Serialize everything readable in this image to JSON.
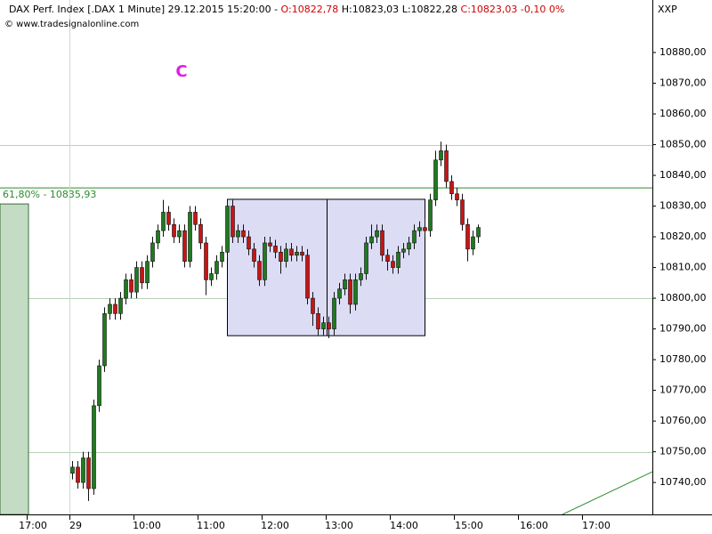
{
  "chart_data": {
    "type": "candlestick",
    "title": "DAX Perf. Index [.DAX  1 Minute] 29.12.2015 15:20:00 -",
    "quote_open": "O:10822,78",
    "quote_high": "H:10823,03",
    "quote_low": "L:10822,28",
    "quote_close": "C:10823,03 -0,10 0%",
    "source": "© www.tradesignalonline.com",
    "symbol": "XXP",
    "annotation": "C",
    "fib_level": {
      "value": 10835.93,
      "label": "61,80% - 10835,93"
    },
    "range_box": {
      "top": 10832.2,
      "bottom": 10787.8
    },
    "prior_box_top": 10830.7,
    "trendline": [
      10729.6,
      10743.5
    ],
    "up_color": "#1f7a1f",
    "down_color": "#c81414",
    "fib_color": "#2e8b2e",
    "ylim": [
      10729.6,
      10897.1
    ],
    "yticks": [
      {
        "value": 10740,
        "label": "10740,00"
      },
      {
        "value": 10750,
        "label": "10750,00"
      },
      {
        "value": 10760,
        "label": "10760,00"
      },
      {
        "value": 10770,
        "label": "10770,00"
      },
      {
        "value": 10780,
        "label": "10780,00"
      },
      {
        "value": 10790,
        "label": "10790,00"
      },
      {
        "value": 10800,
        "label": "10800,00"
      },
      {
        "value": 10810,
        "label": "10810,00"
      },
      {
        "value": 10820,
        "label": "10820,00"
      },
      {
        "value": 10830,
        "label": "10830,00"
      },
      {
        "value": 10840,
        "label": "10840,00"
      },
      {
        "value": 10850,
        "label": "10850,00"
      },
      {
        "value": 10860,
        "label": "10860,00"
      },
      {
        "value": 10870,
        "label": "10870,00"
      },
      {
        "value": 10880,
        "label": "10880,00"
      }
    ],
    "grid_levels": [
      10750,
      10800,
      10850
    ],
    "x_labels": [
      "17:00",
      "29",
      "10:00",
      "11:00",
      "12:00",
      "13:00",
      "14:00",
      "15:00",
      "16:00",
      "17:00"
    ],
    "series": {
      "open": [
        10743,
        10745,
        10740,
        10748,
        10738,
        10765,
        10778,
        10795,
        10798,
        10795,
        10800,
        10806,
        10802,
        10810,
        10805,
        10812,
        10818,
        10822,
        10828,
        10824,
        10820,
        10822,
        10812,
        10828,
        10824,
        10818,
        10806,
        10808,
        10812,
        10815,
        10830,
        10820,
        10822,
        10820,
        10816,
        10812,
        10806,
        10818,
        10817,
        10815,
        10812,
        10816,
        10814,
        10815,
        10814,
        10800,
        10795,
        10790,
        10792,
        10790,
        10800,
        10803,
        10806,
        10798,
        10806,
        10808,
        10818,
        10820,
        10822,
        10814,
        10812,
        10810,
        10815,
        10816,
        10818,
        10822,
        10823,
        10822,
        10832,
        10845,
        10848,
        10838,
        10834,
        10832,
        10824,
        10816,
        10820
      ],
      "high": [
        10747,
        10747,
        10750,
        10750,
        10767,
        10780,
        10797,
        10800,
        10800,
        10802,
        10808,
        10808,
        10812,
        10812,
        10814,
        10820,
        10824,
        10832,
        10830,
        10826,
        10824,
        10824,
        10830,
        10830,
        10826,
        10820,
        10810,
        10814,
        10817,
        10832,
        10832,
        10824,
        10824,
        10822,
        10818,
        10814,
        10820,
        10820,
        10819,
        10817,
        10818,
        10818,
        10817,
        10817,
        10816,
        10802,
        10797,
        10794,
        10794,
        10802,
        10805,
        10808,
        10808,
        10808,
        10810,
        10820,
        10824,
        10824,
        10824,
        10816,
        10814,
        10817,
        10818,
        10820,
        10824,
        10825,
        10826,
        10834,
        10848,
        10851,
        10850,
        10840,
        10836,
        10834,
        10826,
        10822,
        10824
      ],
      "low": [
        10741,
        10738,
        10738,
        10734,
        10736,
        10763,
        10776,
        10793,
        10793,
        10793,
        10798,
        10800,
        10800,
        10803,
        10803,
        10810,
        10816,
        10820,
        10822,
        10818,
        10818,
        10810,
        10810,
        10822,
        10816,
        10801,
        10804,
        10806,
        10810,
        10813,
        10818,
        10818,
        10818,
        10814,
        10810,
        10804,
        10804,
        10815,
        10813,
        10808,
        10810,
        10812,
        10812,
        10812,
        10798,
        10791,
        10788,
        10788,
        10787,
        10788,
        10798,
        10801,
        10795,
        10796,
        10804,
        10806,
        10816,
        10818,
        10812,
        10809,
        10808,
        10808,
        10813,
        10814,
        10816,
        10820,
        10820,
        10820,
        10830,
        10843,
        10836,
        10832,
        10830,
        10822,
        10812,
        10814,
        10818
      ],
      "close": [
        10745,
        10740,
        10748,
        10738,
        10765,
        10778,
        10795,
        10798,
        10795,
        10800,
        10806,
        10802,
        10810,
        10805,
        10812,
        10818,
        10822,
        10828,
        10824,
        10820,
        10822,
        10812,
        10828,
        10824,
        10818,
        10806,
        10808,
        10812,
        10815,
        10830,
        10820,
        10822,
        10820,
        10816,
        10812,
        10806,
        10818,
        10817,
        10815,
        10812,
        10816,
        10814,
        10815,
        10814,
        10800,
        10795,
        10790,
        10792,
        10790,
        10800,
        10803,
        10806,
        10798,
        10806,
        10808,
        10818,
        10820,
        10822,
        10814,
        10812,
        10810,
        10815,
        10816,
        10818,
        10822,
        10823,
        10822,
        10832,
        10845,
        10848,
        10838,
        10834,
        10832,
        10824,
        10816,
        10820,
        10823.03
      ]
    }
  }
}
